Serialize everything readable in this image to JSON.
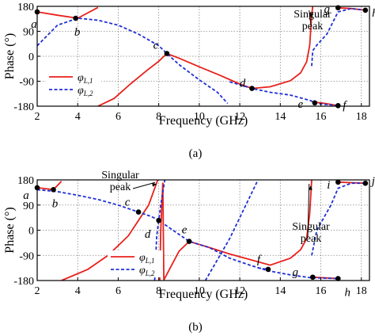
{
  "chart_data": [
    {
      "type": "line",
      "caption": "(a)",
      "xlabel": "Frequency (GHz)",
      "ylabel": "Phase (°)",
      "xlim": [
        2,
        18.4
      ],
      "ylim": [
        -180,
        180
      ],
      "xticks": [
        2,
        4,
        6,
        8,
        10,
        12,
        14,
        16,
        18
      ],
      "yticks": [
        180,
        90,
        0,
        -90,
        -180
      ],
      "grid": "dotted",
      "legend": {
        "position": "bottom-left",
        "entries": [
          "φL1",
          "φL2"
        ]
      },
      "series": [
        {
          "name": "φL1",
          "color": "#e8201b",
          "style": "solid",
          "segments": [
            [
              [
                2.0,
                160
              ],
              [
                3.0,
                148
              ],
              [
                4.0,
                137
              ],
              [
                5.0,
                176
              ]
            ],
            [
              [
                5.0,
                -180
              ],
              [
                5.8,
                -152
              ],
              [
                6.6,
                -100
              ],
              [
                7.4,
                -52
              ],
              [
                8.0,
                -18
              ],
              [
                8.4,
                10
              ],
              [
                9.0,
                -7
              ],
              [
                10.0,
                -38
              ],
              [
                11.0,
                -68
              ],
              [
                12.0,
                -100
              ],
              [
                12.6,
                -116
              ],
              [
                13.5,
                -110
              ],
              [
                14.5,
                -88
              ],
              [
                15.0,
                -60
              ],
              [
                15.3,
                -20
              ],
              [
                15.45,
                40
              ],
              [
                15.55,
                150
              ],
              [
                15.6,
                180
              ]
            ],
            [
              [
                15.65,
                -165
              ],
              [
                16.2,
                -170
              ],
              [
                16.85,
                -178
              ]
            ],
            [
              [
                16.85,
                175
              ],
              [
                17.5,
                172
              ],
              [
                18.2,
                166
              ]
            ]
          ]
        },
        {
          "name": "φL2",
          "color": "#1f2fd6",
          "style": "dashed",
          "segments": [
            [
              [
                2.0,
                38
              ],
              [
                3.0,
                112
              ],
              [
                4.0,
                137
              ],
              [
                5.0,
                130
              ],
              [
                6.0,
                112
              ],
              [
                7.0,
                80
              ],
              [
                8.0,
                38
              ],
              [
                8.4,
                10
              ],
              [
                9.0,
                -30
              ],
              [
                10.0,
                -85
              ],
              [
                10.9,
                -130
              ],
              [
                11.4,
                -170
              ]
            ],
            [
              [
                11.4,
                180
              ]
            ],
            [
              [
                11.5,
                -92
              ],
              [
                12.6,
                -116
              ],
              [
                13.5,
                -130
              ],
              [
                14.5,
                -140
              ],
              [
                15.5,
                -160
              ],
              [
                15.7,
                -168
              ],
              [
                16.0,
                -172
              ],
              [
                16.85,
                -178
              ]
            ],
            [
              [
                15.55,
                -35
              ],
              [
                15.6,
                20
              ],
              [
                15.8,
                40
              ],
              [
                16.3,
                80
              ],
              [
                16.85,
                160
              ],
              [
                17.5,
                172
              ],
              [
                18.2,
                166
              ]
            ]
          ]
        }
      ],
      "points": [
        {
          "label": "a",
          "x": 2.0,
          "y": 160
        },
        {
          "label": "b",
          "x": 3.9,
          "y": 137
        },
        {
          "label": "c",
          "x": 8.4,
          "y": 10
        },
        {
          "label": "d",
          "x": 12.6,
          "y": -116
        },
        {
          "label": "e",
          "x": 15.7,
          "y": -168
        },
        {
          "label": "f",
          "x": 16.85,
          "y": -178
        },
        {
          "label": "g",
          "x": 16.85,
          "y": 175
        },
        {
          "label": "h",
          "x": 18.2,
          "y": 166
        }
      ],
      "annotations": [
        {
          "text": [
            "Singular",
            "peak"
          ],
          "target": [
            15.5,
            160
          ]
        }
      ]
    },
    {
      "type": "line",
      "caption": "(b)",
      "xlabel": "Frequency (GHz)",
      "ylabel": "Phase (°)",
      "xlim": [
        2,
        18.4
      ],
      "ylim": [
        -180,
        180
      ],
      "xticks": [
        2,
        4,
        6,
        8,
        10,
        12,
        14,
        16,
        18
      ],
      "yticks": [
        180,
        90,
        0,
        -90,
        -180
      ],
      "grid": "dotted",
      "legend": {
        "position": "bottom-left",
        "entries": [
          "φL1",
          "φL2"
        ]
      },
      "series": [
        {
          "name": "φL1",
          "color": "#e8201b",
          "style": "solid",
          "segments": [
            [
              [
                2.0,
                152
              ],
              [
                2.8,
                145
              ],
              [
                3.2,
                175
              ]
            ],
            [
              [
                3.2,
                -180
              ],
              [
                4.5,
                -140
              ],
              [
                5.5,
                -90
              ],
              [
                6.5,
                -20
              ],
              [
                7.0,
                35
              ],
              [
                7.5,
                90
              ],
              [
                7.85,
                160
              ],
              [
                7.95,
                180
              ]
            ],
            [
              [
                8.05,
                -180
              ],
              [
                8.1,
                0
              ],
              [
                8.2,
                170
              ]
            ],
            [
              [
                8.2,
                170
              ],
              [
                8.25,
                -178
              ]
            ],
            [
              [
                8.25,
                -178
              ],
              [
                9.0,
                -75
              ],
              [
                9.5,
                -40
              ],
              [
                10.5,
                -62
              ],
              [
                11.5,
                -85
              ],
              [
                12.5,
                -105
              ],
              [
                13.5,
                -125
              ],
              [
                14.5,
                -100
              ],
              [
                15.0,
                -70
              ],
              [
                15.3,
                -30
              ],
              [
                15.45,
                60
              ],
              [
                15.55,
                180
              ]
            ],
            [
              [
                15.6,
                -168
              ],
              [
                16.85,
                -173
              ]
            ],
            [
              [
                16.85,
                172
              ],
              [
                17.5,
                170
              ],
              [
                18.2,
                168
              ]
            ]
          ]
        },
        {
          "name": "φL2",
          "color": "#1f2fd6",
          "style": "dashed",
          "segments": [
            [
              [
                2.0,
                145
              ],
              [
                3.0,
                138
              ],
              [
                4.0,
                125
              ],
              [
                5.0,
                110
              ],
              [
                6.0,
                90
              ],
              [
                7.0,
                65
              ],
              [
                7.6,
                50
              ],
              [
                7.9,
                40
              ],
              [
                8.0,
                35
              ],
              [
                8.1,
                90
              ],
              [
                8.3,
                180
              ]
            ],
            [
              [
                7.8,
                -180
              ],
              [
                7.9,
                -20
              ],
              [
                8.0,
                35
              ]
            ],
            [
              [
                8.3,
                20
              ],
              [
                9.0,
                -15
              ],
              [
                9.5,
                -40
              ],
              [
                10.5,
                -62
              ],
              [
                11.5,
                -100
              ],
              [
                12.5,
                -125
              ],
              [
                13.4,
                -145
              ],
              [
                14.5,
                -160
              ],
              [
                15.5,
                -170
              ],
              [
                16.85,
                -173
              ]
            ],
            [
              [
                10.3,
                -180
              ],
              [
                11.5,
                -30
              ],
              [
                12.9,
                180
              ]
            ],
            [
              [
                12.9,
                -135
              ],
              [
                13.4,
                -140
              ]
            ],
            [
              [
                15.55,
                -90
              ],
              [
                15.8,
                0
              ],
              [
                16.5,
                90
              ],
              [
                16.85,
                150
              ],
              [
                17.5,
                168
              ],
              [
                18.2,
                168
              ]
            ]
          ]
        }
      ],
      "points": [
        {
          "label": "a",
          "x": 2.0,
          "y": 152
        },
        {
          "label": "b",
          "x": 2.8,
          "y": 145
        },
        {
          "label": "c",
          "x": 7.0,
          "y": 65
        },
        {
          "label": "d",
          "x": 8.0,
          "y": 35
        },
        {
          "label": "e",
          "x": 9.5,
          "y": -40
        },
        {
          "label": "f",
          "x": 13.4,
          "y": -140
        },
        {
          "label": "g",
          "x": 15.6,
          "y": -168
        },
        {
          "label": "h",
          "x": 16.85,
          "y": -173
        },
        {
          "label": "i",
          "x": 16.85,
          "y": 172
        },
        {
          "label": "j",
          "x": 18.2,
          "y": 168
        }
      ],
      "annotations": [
        {
          "text": [
            "Singular",
            "peak"
          ],
          "target": [
            7.9,
            165
          ]
        },
        {
          "text": [
            "Singular",
            "peak"
          ],
          "target": [
            15.5,
            160
          ]
        }
      ]
    }
  ]
}
